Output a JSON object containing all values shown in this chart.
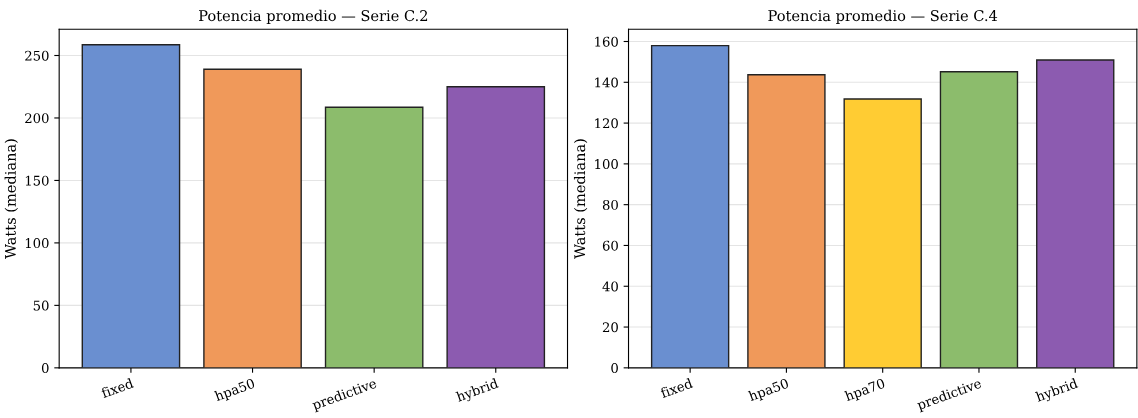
{
  "chart_data": [
    {
      "type": "bar",
      "title": "Potencia promedio — Serie C.2",
      "ylabel": "Watts (mediana)",
      "categories": [
        "fixed",
        "hpa50",
        "predictive",
        "hybrid"
      ],
      "values": [
        258.6,
        239,
        208.6,
        225
      ],
      "colors": [
        "#6a8fd0",
        "#f0995a",
        "#8cbc6c",
        "#8c5bb0"
      ],
      "ylim": [
        0,
        271
      ],
      "yticks": [
        0,
        50,
        100,
        150,
        200,
        250
      ],
      "grid": "y"
    },
    {
      "type": "bar",
      "title": "Potencia promedio — Serie C.4",
      "ylabel": "Watts (mediana)",
      "categories": [
        "fixed",
        "hpa50",
        "hpa70",
        "predictive",
        "hybrid"
      ],
      "values": [
        158,
        143.7,
        131.8,
        145.2,
        150.9
      ],
      "colors": [
        "#6a8fd0",
        "#f0995a",
        "#ffcc33",
        "#8cbc6c",
        "#8c5bb0"
      ],
      "ylim": [
        0,
        166
      ],
      "yticks": [
        0,
        20,
        40,
        60,
        80,
        100,
        120,
        140,
        160
      ],
      "grid": "y"
    }
  ]
}
